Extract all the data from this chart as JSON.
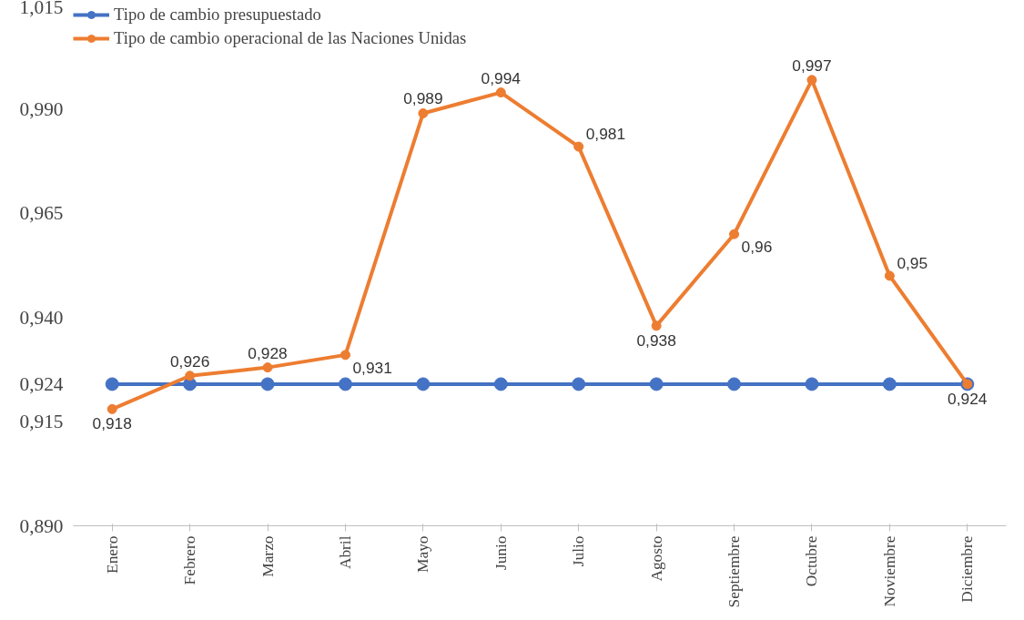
{
  "chart_data": {
    "type": "line",
    "categories": [
      "Enero",
      "Febrero",
      "Marzo",
      "Abril",
      "Mayo",
      "Junio",
      "Julio",
      "Agosto",
      "Septiembre",
      "Octubre",
      "Noviembre",
      "Diciembre"
    ],
    "series": [
      {
        "name": "Tipo de cambio presupuestado",
        "color": "#4472c4",
        "values": [
          0.924,
          0.924,
          0.924,
          0.924,
          0.924,
          0.924,
          0.924,
          0.924,
          0.924,
          0.924,
          0.924,
          0.924
        ]
      },
      {
        "name": "Tipo de cambio operacional de las Naciones Unidas",
        "color": "#ed7d31",
        "values": [
          0.918,
          0.926,
          0.928,
          0.931,
          0.989,
          0.994,
          0.981,
          0.938,
          0.96,
          0.997,
          0.95,
          0.924
        ],
        "value_labels": [
          "0,918",
          "0,926",
          "0,928",
          "0,931",
          "0,989",
          "0,994",
          "0,981",
          "0,938",
          "0,96",
          "0,997",
          "0,95",
          "0,924"
        ]
      }
    ],
    "ylim": [
      0.89,
      1.015
    ],
    "yticks": [
      {
        "value": 0.89,
        "label": "0,890"
      },
      {
        "value": 0.915,
        "label": "0,915"
      },
      {
        "value": 0.924,
        "label": "0,924"
      },
      {
        "value": 0.94,
        "label": "0,940"
      },
      {
        "value": 0.965,
        "label": "0,965"
      },
      {
        "value": 0.99,
        "label": "0,990"
      },
      {
        "value": 1.015,
        "label": "1,015"
      }
    ],
    "grid": false,
    "legend": "top left",
    "marker": "circle",
    "line_style": "solid"
  }
}
